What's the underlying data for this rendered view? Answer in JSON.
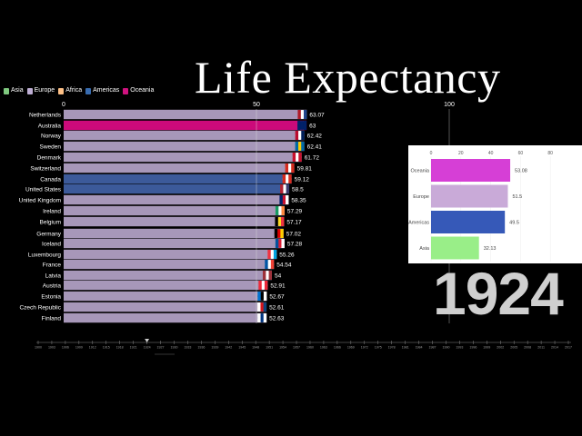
{
  "chart_data": [
    {
      "type": "bar",
      "title": "Life Expectancy",
      "year": "1924",
      "xlim": [
        0,
        100
      ],
      "ticks": [
        0,
        50,
        100
      ],
      "legend": [
        {
          "name": "Asia",
          "color": "#7fc97f"
        },
        {
          "name": "Europe",
          "color": "#beaed4"
        },
        {
          "name": "Africa",
          "color": "#fdc086"
        },
        {
          "name": "Americas",
          "color": "#386cb0"
        },
        {
          "name": "Oceania",
          "color": "#d0127f"
        }
      ],
      "colors": {
        "Europe": "#a797b9",
        "Oceania": "#cc0a7a",
        "Americas": "#3c5a9a"
      },
      "categories": [
        "Netherlands",
        "Australia",
        "Norway",
        "Sweden",
        "Denmark",
        "Switzerland",
        "Canada",
        "United States",
        "United Kingdom",
        "Ireland",
        "Belgium",
        "Germany",
        "Iceland",
        "Luxembourg",
        "France",
        "Latvia",
        "Austria",
        "Estonia",
        "Czech Republic",
        "Finland"
      ],
      "values": [
        63.07,
        63,
        62.42,
        62.41,
        61.72,
        59.81,
        59.12,
        58.5,
        58.35,
        57.29,
        57.17,
        57.02,
        57.28,
        55.26,
        54.54,
        54,
        52.91,
        52.67,
        52.61,
        52.63
      ],
      "labels": [
        "63.07",
        "63",
        "62.42",
        "62.41",
        "61.72",
        "59.81",
        "59.12",
        "58.5",
        "58.35",
        "57.29",
        "57.17",
        "57.02",
        "57.28",
        "55.26",
        "54.54",
        "54",
        "52.91",
        "52.67",
        "52.61",
        "52.63"
      ],
      "continents": [
        "Europe",
        "Oceania",
        "Europe",
        "Europe",
        "Europe",
        "Europe",
        "Americas",
        "Americas",
        "Europe",
        "Europe",
        "Europe",
        "Europe",
        "Europe",
        "Europe",
        "Europe",
        "Europe",
        "Europe",
        "Europe",
        "Europe",
        "Europe"
      ],
      "flags": [
        [
          "#ae1c28",
          "#fff",
          "#21468b"
        ],
        [
          "#012169",
          "#012169",
          "#012169"
        ],
        [
          "#ba0c2f",
          "#fff",
          "#00205b"
        ],
        [
          "#006aa7",
          "#fecc00",
          "#006aa7"
        ],
        [
          "#c8102e",
          "#fff",
          "#c8102e"
        ],
        [
          "#d52b1e",
          "#fff",
          "#d52b1e"
        ],
        [
          "#d52b1e",
          "#fff",
          "#d52b1e"
        ],
        [
          "#b22234",
          "#fff",
          "#3c3b6e"
        ],
        [
          "#012169",
          "#c8102e",
          "#fff"
        ],
        [
          "#169b62",
          "#fff",
          "#ff883e"
        ],
        [
          "#000",
          "#fdda24",
          "#ef3340"
        ],
        [
          "#000",
          "#dd0000",
          "#ffce00"
        ],
        [
          "#02529c",
          "#dc1e35",
          "#fff"
        ],
        [
          "#ef3340",
          "#fff",
          "#00a3e0"
        ],
        [
          "#0055a4",
          "#fff",
          "#ef4135"
        ],
        [
          "#9e3039",
          "#fff",
          "#9e3039"
        ],
        [
          "#ed2939",
          "#fff",
          "#ed2939"
        ],
        [
          "#0072ce",
          "#000",
          "#fff"
        ],
        [
          "#fff",
          "#d7141a",
          "#11457e"
        ],
        [
          "#fff",
          "#003580",
          "#fff"
        ]
      ]
    },
    {
      "type": "bar",
      "xlim": [
        0,
        100
      ],
      "ticks": [
        0,
        20,
        40,
        60,
        80
      ],
      "categories": [
        "Oceania",
        "Europe",
        "Americas",
        "Asia"
      ],
      "values": [
        53.08,
        51.5,
        49.5,
        32.13
      ],
      "labels": [
        "53.08",
        "51.5",
        "49.5",
        "32.13"
      ],
      "colors": [
        "#d63fd6",
        "#c9aad8",
        "#3659b8",
        "#99ee88"
      ]
    }
  ],
  "timeline": {
    "years": [
      "1900",
      "1903",
      "1906",
      "1909",
      "1912",
      "1915",
      "1918",
      "1921",
      "1924",
      "1927",
      "1930",
      "1933",
      "1936",
      "1939",
      "1942",
      "1945",
      "1948",
      "1951",
      "1954",
      "1957",
      "1960",
      "1963",
      "1966",
      "1969",
      "1972",
      "1975",
      "1978",
      "1981",
      "1984",
      "1987",
      "1990",
      "1993",
      "1996",
      "1999",
      "2002",
      "2005",
      "2008",
      "2011",
      "2014",
      "2017"
    ],
    "current": "1924"
  }
}
